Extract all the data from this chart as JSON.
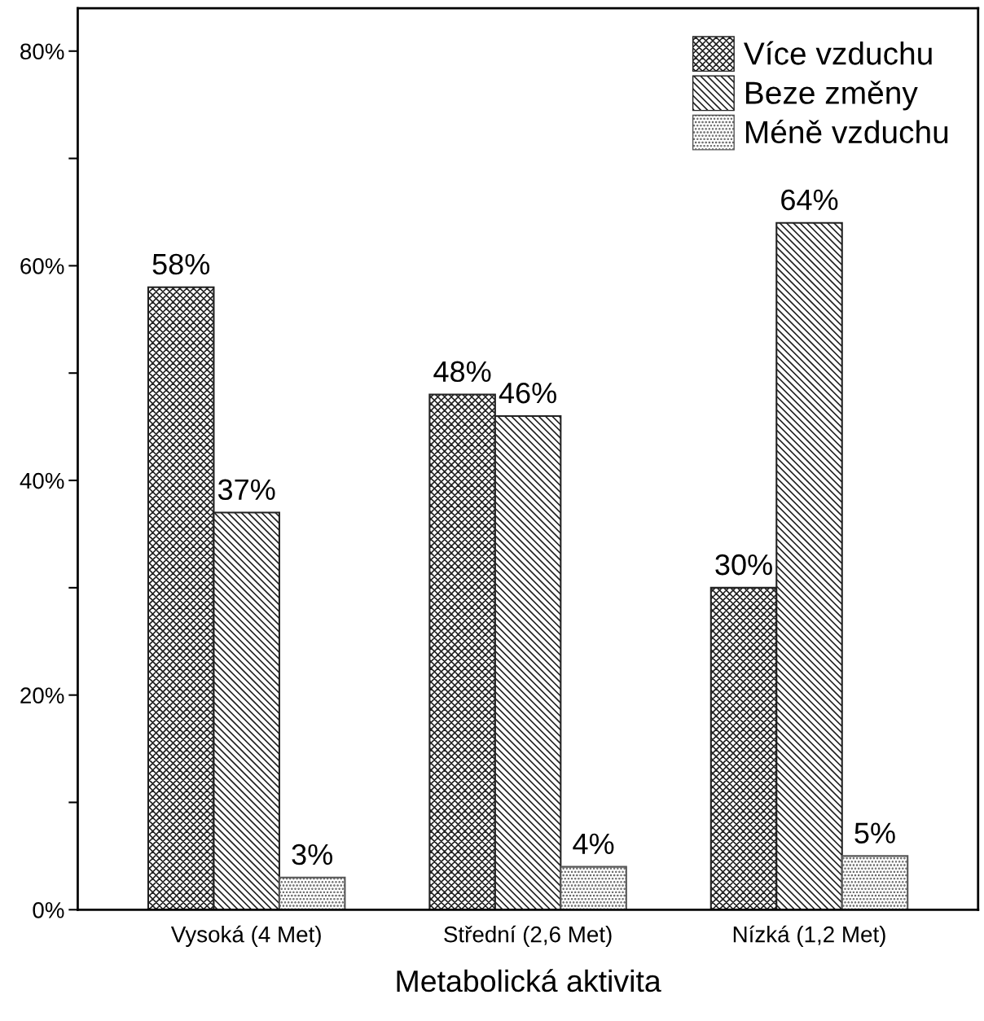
{
  "chart_data": {
    "type": "bar",
    "xlabel": "Metabolická aktivita",
    "categories": [
      "Vysoká (4 Met)",
      "Střední (2,6 Met)",
      "Nízká (1,2 Met)"
    ],
    "series": [
      {
        "name": "Více vzduchu",
        "color": "#222222",
        "values": [
          58,
          48,
          30
        ],
        "value_labels": [
          "58%",
          "48%",
          "30%"
        ]
      },
      {
        "name": "Beze změny",
        "color": "#222222",
        "values": [
          37,
          46,
          64
        ],
        "value_labels": [
          "37%",
          "46%",
          "64%"
        ]
      },
      {
        "name": "Méně vzduchu",
        "color": "#555555",
        "values": [
          3,
          4,
          5
        ],
        "value_labels": [
          "3%",
          "4%",
          "5%"
        ]
      }
    ],
    "ylim": [
      0,
      84
    ],
    "yticks": [
      {
        "value": 0,
        "label": "0%"
      },
      {
        "value": 10,
        "label": null
      },
      {
        "value": 20,
        "label": "20%"
      },
      {
        "value": 30,
        "label": null
      },
      {
        "value": 40,
        "label": "40%"
      },
      {
        "value": 50,
        "label": null
      },
      {
        "value": 60,
        "label": "60%"
      },
      {
        "value": 70,
        "label": null
      },
      {
        "value": 80,
        "label": "80%"
      }
    ],
    "grid": false,
    "legend": "top right"
  }
}
